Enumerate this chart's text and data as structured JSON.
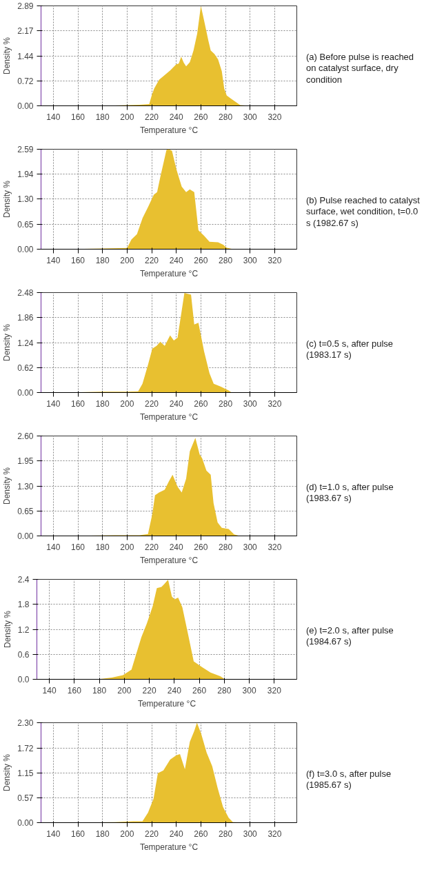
{
  "chart_data": [
    {
      "type": "area",
      "xlabel": "Temperature °C",
      "ylabel": "Density %",
      "color": "#e8c030",
      "grid": true,
      "xlim": [
        130,
        338
      ],
      "xticks": [
        140,
        160,
        180,
        200,
        220,
        240,
        260,
        280,
        300,
        320
      ],
      "ylim": [
        0,
        2.89
      ],
      "yticks": [
        {
          "value": 0,
          "label": "0.00"
        },
        0.72,
        1.44,
        2.17,
        2.89
      ],
      "annotations": [
        "(a) Before pulse is reached on catalyst surface, dry condition"
      ],
      "x": [
        130,
        150,
        190,
        210,
        218,
        220,
        222,
        226,
        231,
        235,
        240,
        242,
        244,
        246,
        248,
        251,
        254,
        257,
        260,
        263,
        266,
        268,
        271,
        274,
        277,
        279,
        281,
        284,
        288,
        292,
        300,
        338
      ],
      "values": [
        0,
        0,
        0.01,
        0.03,
        0.05,
        0.3,
        0.5,
        0.75,
        0.9,
        1.02,
        1.2,
        1.22,
        1.42,
        1.25,
        1.14,
        1.26,
        1.6,
        2.09,
        2.89,
        2.4,
        1.9,
        1.6,
        1.5,
        1.34,
        1.0,
        0.5,
        0.3,
        0.22,
        0.12,
        0.02,
        0,
        0
      ]
    },
    {
      "type": "area",
      "xlabel": "Temperature °C",
      "ylabel": "Density %",
      "color": "#e8c030",
      "grid": true,
      "xlim": [
        130,
        338
      ],
      "xticks": [
        140,
        160,
        180,
        200,
        220,
        240,
        260,
        280,
        300,
        320
      ],
      "ylim": [
        0,
        2.59
      ],
      "yticks": [
        {
          "value": 0,
          "label": "0.00"
        },
        0.65,
        {
          "value": 1.3,
          "label": "1.30"
        },
        1.94,
        2.59
      ],
      "annotations": [
        "(b) Pulse reached to catalyst surface, wet condition, t=0.0 s (1982.67 s)"
      ],
      "x": [
        130,
        150,
        180,
        200,
        203.5,
        208,
        212.6,
        217,
        221.7,
        224.4,
        227,
        232,
        234,
        236.5,
        240,
        244.4,
        248,
        251,
        254.6,
        258,
        262.6,
        267,
        274,
        278.4,
        280.7,
        285,
        300,
        338
      ],
      "values": [
        0,
        0,
        0.02,
        0.03,
        0.25,
        0.39,
        0.81,
        1.09,
        1.41,
        1.48,
        1.87,
        2.57,
        2.59,
        2.55,
        2.08,
        1.62,
        1.48,
        1.55,
        1.48,
        0.49,
        0.35,
        0.19,
        0.18,
        0.11,
        0.04,
        0.01,
        0,
        0
      ]
    },
    {
      "type": "area",
      "xlabel": "Temperature °C",
      "ylabel": "Density %",
      "color": "#e8c030",
      "grid": true,
      "xlim": [
        130,
        338
      ],
      "xticks": [
        140,
        160,
        180,
        200,
        220,
        240,
        260,
        280,
        300,
        320
      ],
      "ylim": [
        0,
        2.48
      ],
      "yticks": [
        {
          "value": 0,
          "label": "0.00"
        },
        0.62,
        1.24,
        1.86,
        2.48
      ],
      "annotations": [
        "(c) t=0.5 s, after pulse (1983.17 s)"
      ],
      "x": [
        130,
        150,
        180,
        200,
        209,
        212.5,
        217,
        220.5,
        224,
        227,
        230.6,
        235,
        238,
        241,
        244.4,
        246.6,
        252,
        254.6,
        258,
        262.6,
        267,
        270.4,
        276,
        282.6,
        285,
        300,
        338
      ],
      "values": [
        0,
        0,
        0.02,
        0.02,
        0.03,
        0.22,
        0.69,
        1.09,
        1.16,
        1.26,
        1.16,
        1.42,
        1.29,
        1.36,
        2.03,
        2.47,
        2.43,
        1.69,
        1.73,
        1.02,
        0.48,
        0.22,
        0.15,
        0.05,
        0,
        0,
        0
      ]
    },
    {
      "type": "area",
      "xlabel": "Temperature °C",
      "ylabel": "Density %",
      "color": "#e8c030",
      "grid": true,
      "xlim": [
        130,
        338
      ],
      "xticks": [
        140,
        160,
        180,
        200,
        220,
        240,
        260,
        280,
        300,
        320
      ],
      "ylim": [
        0,
        2.6
      ],
      "yticks": [
        {
          "value": 0,
          "label": "0.00"
        },
        0.65,
        {
          "value": 1.3,
          "label": "1.30"
        },
        1.95,
        {
          "value": 2.6,
          "label": "2.60"
        }
      ],
      "annotations": [
        "(d) t=1.0 s, after pulse (1983.67 s)"
      ],
      "x": [
        130,
        150,
        190,
        210,
        217,
        220.5,
        222.7,
        226,
        230.6,
        234,
        237,
        241,
        244.4,
        248,
        251,
        255.5,
        259,
        261,
        264.5,
        268,
        270.3,
        273.6,
        277,
        282.6,
        287,
        291.6,
        300,
        338
      ],
      "values": [
        0,
        0,
        0.02,
        0.02,
        0.05,
        0.57,
        1.06,
        1.13,
        1.2,
        1.42,
        1.59,
        1.28,
        1.13,
        1.49,
        2.2,
        2.55,
        2.12,
        2.02,
        1.7,
        1.59,
        0.85,
        0.35,
        0.21,
        0.18,
        0.04,
        0,
        0,
        0
      ]
    },
    {
      "type": "area",
      "xlabel": "Temperature °C",
      "ylabel": "Density %",
      "color": "#e8c030",
      "grid": true,
      "xlim": [
        130,
        338
      ],
      "xticks": [
        140,
        160,
        180,
        200,
        220,
        240,
        260,
        280,
        300,
        320
      ],
      "ylim": [
        0,
        2.4
      ],
      "yticks": [
        {
          "value": 0,
          "label": "0.0"
        },
        0.6,
        1.2,
        1.8,
        2.4
      ],
      "annotations": [
        "(e) t=2.0 s, after pulse (1984.67 s)"
      ],
      "x": [
        130,
        150,
        180.7,
        190,
        198.9,
        205.7,
        209,
        213.6,
        218,
        222.7,
        226,
        229.7,
        232,
        235,
        238,
        240,
        243,
        246.4,
        251,
        255.5,
        262.3,
        269,
        277,
        280.4,
        300,
        338
      ],
      "values": [
        0,
        0,
        0.01,
        0.04,
        0.1,
        0.23,
        0.56,
        1.01,
        1.34,
        1.76,
        2.19,
        2.22,
        2.29,
        2.39,
        1.99,
        1.92,
        1.96,
        1.73,
        1.08,
        0.43,
        0.29,
        0.16,
        0.07,
        0,
        0,
        0
      ]
    },
    {
      "type": "area",
      "xlabel": "Temperature °C",
      "ylabel": "Density %",
      "color": "#e8c030",
      "grid": true,
      "xlim": [
        130,
        338
      ],
      "xticks": [
        140,
        160,
        180,
        200,
        220,
        240,
        260,
        280,
        300,
        320
      ],
      "ylim": [
        0,
        2.3
      ],
      "yticks": [
        {
          "value": 0,
          "label": "0.00"
        },
        0.57,
        1.15,
        1.72,
        {
          "value": 2.3,
          "label": "2.30"
        }
      ],
      "annotations": [
        "(f) t=3.0 s, after pulse (1985.67 s)"
      ],
      "x": [
        130,
        150,
        190,
        205,
        212.5,
        217,
        221.5,
        225,
        229.5,
        235,
        240,
        243,
        247,
        251,
        254.6,
        256.8,
        260.2,
        264.7,
        269.2,
        273.6,
        278,
        282.6,
        286,
        300,
        338
      ],
      "values": [
        0,
        0,
        0.01,
        0.03,
        0.03,
        0.23,
        0.55,
        1.14,
        1.2,
        1.45,
        1.55,
        1.58,
        1.23,
        1.86,
        2.11,
        2.3,
        2.05,
        1.61,
        1.3,
        0.8,
        0.36,
        0.11,
        0.01,
        0,
        0
      ]
    }
  ]
}
